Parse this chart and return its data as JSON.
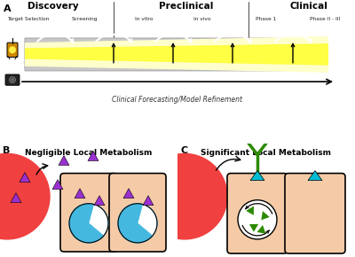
{
  "panel_A_label": "A",
  "panel_B_label": "B",
  "panel_C_label": "C",
  "discovery_label": "Discovery",
  "preclinical_label": "Preclinical",
  "clinical_label": "Clinical",
  "stage_labels": [
    "Target Selection",
    "Screening",
    "In vitro",
    "In vivo",
    "Phase 1",
    "Phase II - III"
  ],
  "forecast_label": "Clinical Forecasting/Model Refinement",
  "negligible_label": "Negligible Local Metabolism",
  "significant_label": "Significant Local Metabolism",
  "bg_color": "#ffffff",
  "gray_arrow_color": "#c8c8c8",
  "gray_arrow_edge": "#aaaaaa",
  "yellow_color": "#ffff44",
  "yellow_light": "#ffffcc",
  "cell_color": "#f5cba7",
  "nucleus_color": "#45b8e0",
  "triangle_purple": "#9b30d0",
  "green_color": "#2d8a00",
  "red_cell_color": "#f04040",
  "cyan_color": "#00bcd4",
  "black": "#000000",
  "white": "#ffffff"
}
